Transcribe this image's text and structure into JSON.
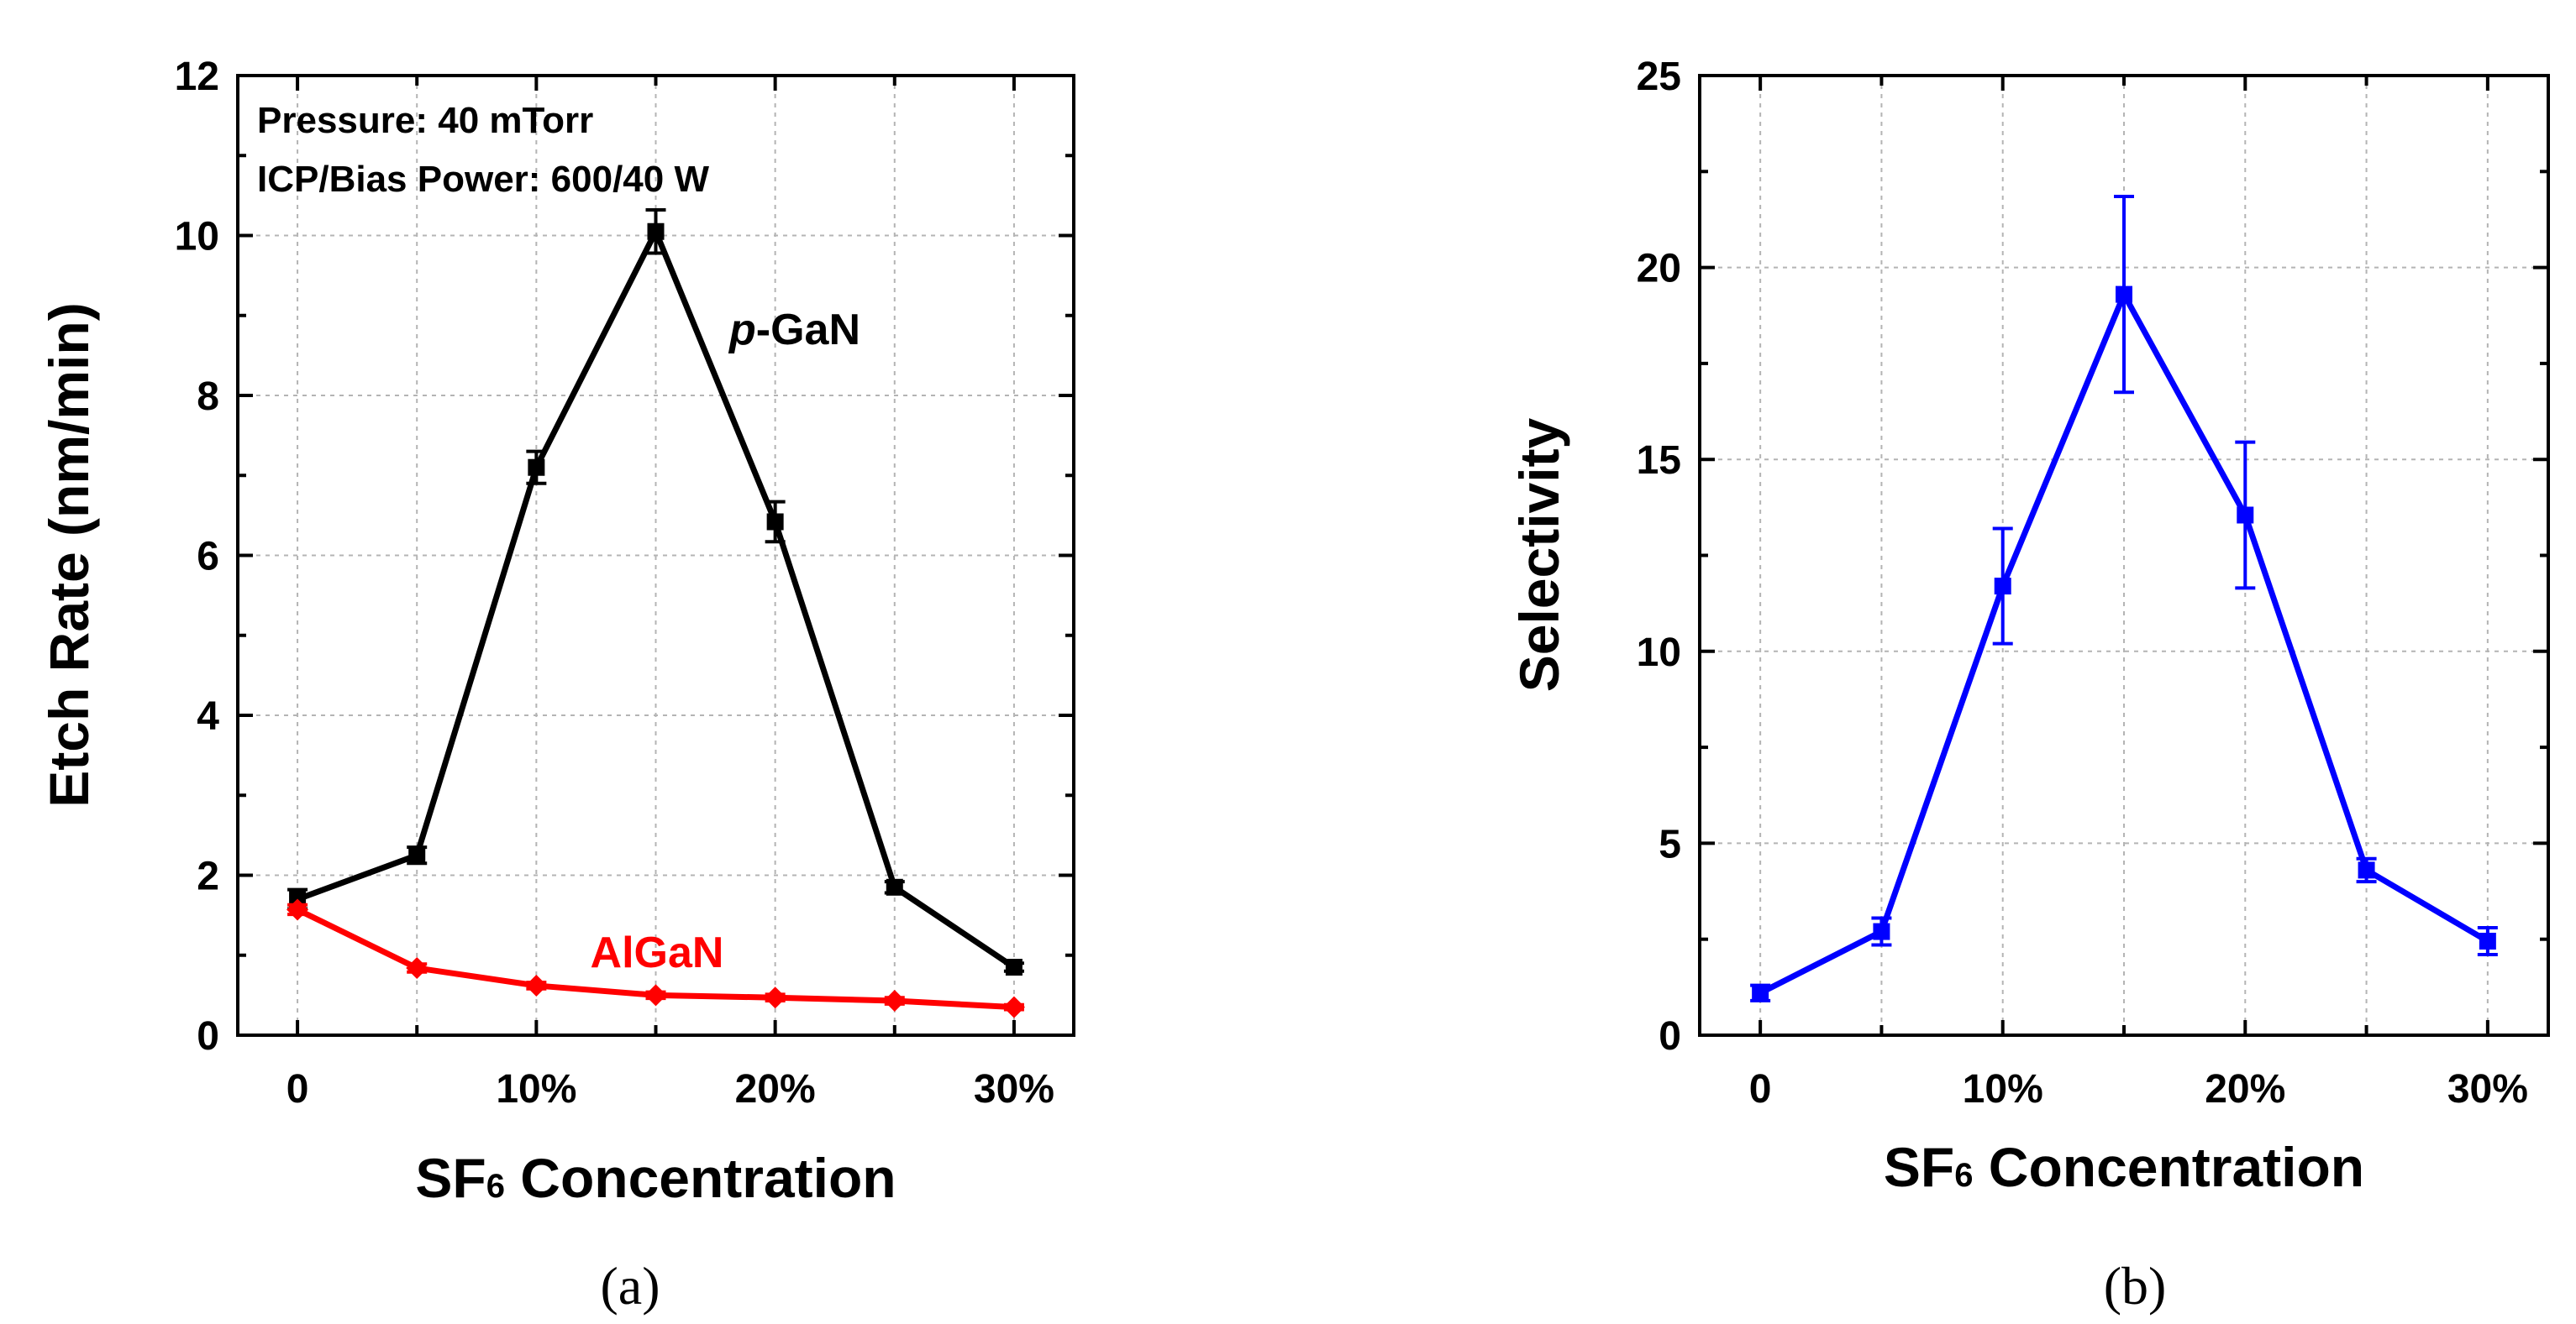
{
  "chart_data": [
    {
      "panel": "(a)",
      "type": "line",
      "xlabel_main": "SF",
      "xlabel_sub": "6",
      "xlabel_rest": " Concentration",
      "ylabel": "Etch Rate (nm/min)",
      "x": [
        0,
        5,
        10,
        15,
        20,
        25,
        30
      ],
      "x_tick_values": [
        0,
        10,
        20,
        30
      ],
      "x_tick_labels": [
        "0",
        "10%",
        "20%",
        "30%"
      ],
      "xlim": [
        -2.5,
        32.5
      ],
      "ylim": [
        0,
        12
      ],
      "y_ticks": [
        0,
        2,
        4,
        6,
        8,
        10,
        12
      ],
      "grid": true,
      "annotations": [
        "Pressure: 40 mTorr",
        "ICP/Bias Power: 600/40 W"
      ],
      "series": [
        {
          "label_italic": "p",
          "label_rest": "-GaN",
          "color": "#000000",
          "marker": "square",
          "values": [
            1.7,
            2.25,
            7.1,
            10.05,
            6.42,
            1.85,
            0.85
          ],
          "errors": [
            0.12,
            0.1,
            0.2,
            0.27,
            0.25,
            0.07,
            0.05
          ]
        },
        {
          "label_italic": "",
          "label_rest": "AlGaN",
          "color": "#ff0000",
          "marker": "diamond",
          "values": [
            1.57,
            0.84,
            0.62,
            0.5,
            0.47,
            0.43,
            0.35
          ],
          "errors": [
            0.06,
            0.05,
            0.04,
            0.04,
            0.04,
            0.04,
            0.03
          ]
        }
      ]
    },
    {
      "panel": "(b)",
      "type": "line",
      "xlabel_main": "SF",
      "xlabel_sub": "6",
      "xlabel_rest": " Concentration",
      "ylabel": "Selectivity",
      "x": [
        0,
        5,
        10,
        15,
        20,
        25,
        30
      ],
      "x_tick_values": [
        0,
        10,
        20,
        30
      ],
      "x_tick_labels": [
        "0",
        "10%",
        "20%",
        "30%"
      ],
      "xlim": [
        -2.5,
        32.5
      ],
      "ylim": [
        0,
        25
      ],
      "y_ticks": [
        0,
        5,
        10,
        15,
        20,
        25
      ],
      "grid": true,
      "series": [
        {
          "color": "#0000ff",
          "marker": "square",
          "values": [
            1.1,
            2.7,
            11.7,
            19.3,
            13.55,
            4.3,
            2.45
          ],
          "errors": [
            0.2,
            0.35,
            1.5,
            2.55,
            1.9,
            0.3,
            0.35
          ]
        }
      ]
    }
  ]
}
